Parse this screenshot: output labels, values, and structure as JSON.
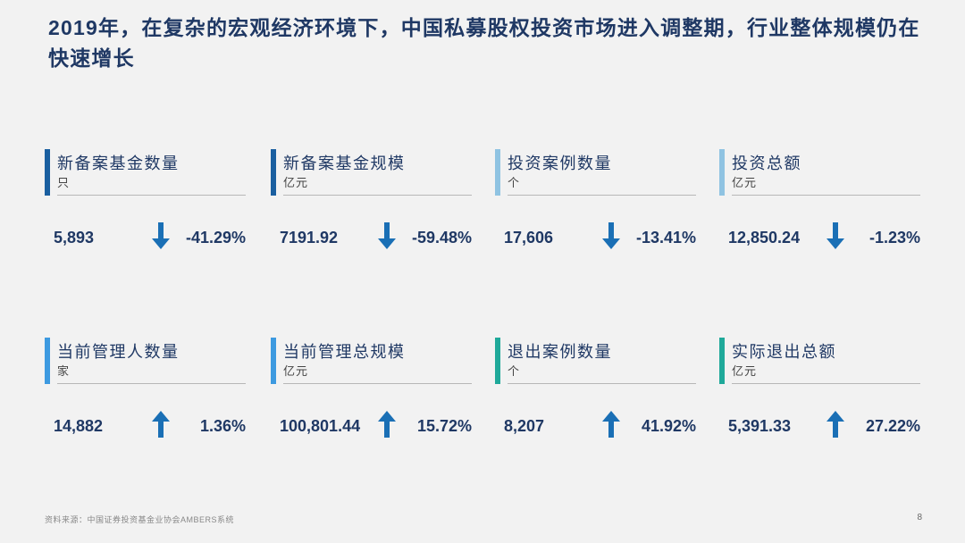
{
  "title": "2019年，在复杂的宏观经济环境下，中国私募股权投资市场进入调整期，行业整体规模仍在快速增长",
  "colors": {
    "dark_blue": "#1a5fa0",
    "light_blue": "#8fc3e2",
    "sky_blue": "#3d9ae0",
    "teal": "#1fa99a",
    "arrow": "#1a6fb5"
  },
  "metrics": [
    {
      "label": "新备案基金数量",
      "unit": "只",
      "value": "5,893",
      "direction": "down",
      "change": "-41.29%",
      "bar_color": "#1a5fa0"
    },
    {
      "label": "新备案基金规模",
      "unit": "亿元",
      "value": "7191.92",
      "direction": "down",
      "change": "-59.48%",
      "bar_color": "#1a5fa0"
    },
    {
      "label": "投资案例数量",
      "unit": "个",
      "value": "17,606",
      "direction": "down",
      "change": "-13.41%",
      "bar_color": "#8fc3e2"
    },
    {
      "label": "投资总额",
      "unit": "亿元",
      "value": "12,850.24",
      "direction": "down",
      "change": "-1.23%",
      "bar_color": "#8fc3e2"
    },
    {
      "label": "当前管理人数量",
      "unit": "家",
      "value": "14,882",
      "direction": "up",
      "change": "1.36%",
      "bar_color": "#3d9ae0"
    },
    {
      "label": "当前管理总规模",
      "unit": "亿元",
      "value": "100,801.44",
      "direction": "up",
      "change": "15.72%",
      "bar_color": "#3d9ae0"
    },
    {
      "label": "退出案例数量",
      "unit": "个",
      "value": "8,207",
      "direction": "up",
      "change": "41.92%",
      "bar_color": "#1fa99a"
    },
    {
      "label": "实际退出总额",
      "unit": "亿元",
      "value": "5,391.33",
      "direction": "up",
      "change": "27.22%",
      "bar_color": "#1fa99a"
    }
  ],
  "source": "资料来源：中国证券投资基金业协会AMBERS系统",
  "page_number": "8"
}
